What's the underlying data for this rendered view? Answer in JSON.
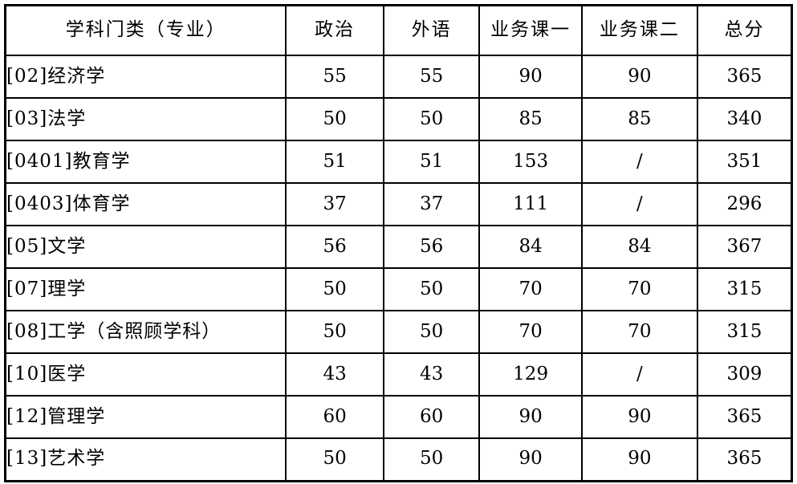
{
  "table": {
    "title": "score-cutoff-table",
    "columns": [
      "学科门类（专业）",
      "政治",
      "外语",
      "业务课一",
      "业务课二",
      "总分"
    ],
    "rows": [
      [
        "[02]经济学",
        "55",
        "55",
        "90",
        "90",
        "365"
      ],
      [
        "[03]法学",
        "50",
        "50",
        "85",
        "85",
        "340"
      ],
      [
        "[0401]教育学",
        "51",
        "51",
        "153",
        "/",
        "351"
      ],
      [
        "[0403]体育学",
        "37",
        "37",
        "111",
        "/",
        "296"
      ],
      [
        "[05]文学",
        "56",
        "56",
        "84",
        "84",
        "367"
      ],
      [
        "[07]理学",
        "50",
        "50",
        "70",
        "70",
        "315"
      ],
      [
        "[08]工学（含照顾学科）",
        "50",
        "50",
        "70",
        "70",
        "315"
      ],
      [
        "[10]医学",
        "43",
        "43",
        "129",
        "/",
        "309"
      ],
      [
        "[12]管理学",
        "60",
        "60",
        "90",
        "90",
        "365"
      ],
      [
        "[13]艺术学",
        "50",
        "50",
        "90",
        "90",
        "365"
      ]
    ]
  }
}
